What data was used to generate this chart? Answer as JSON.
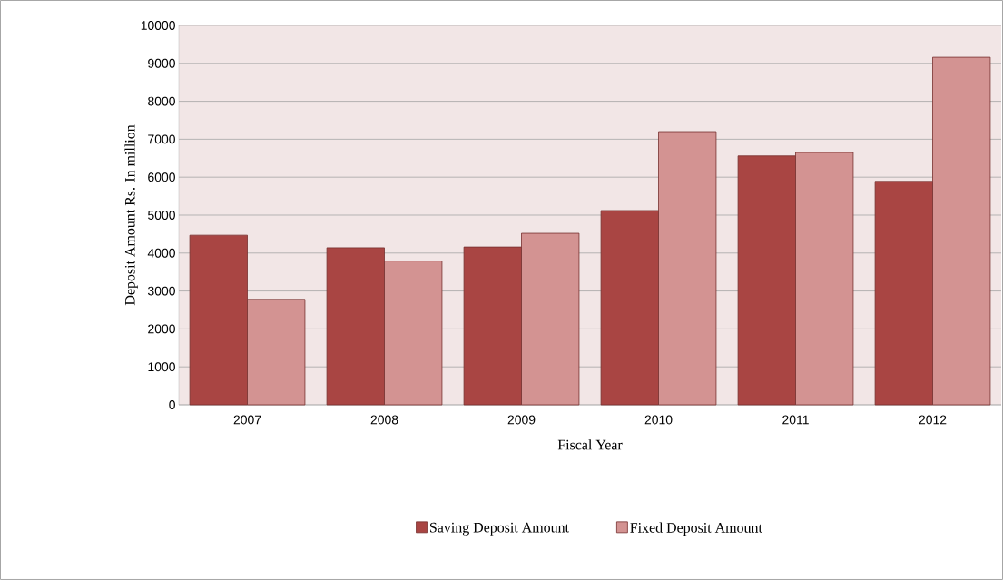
{
  "chart_data": {
    "type": "bar",
    "xlabel": "Fiscal Year",
    "ylabel": "Deposit Amount Rs. In million",
    "categories": [
      "2007",
      "2008",
      "2009",
      "2010",
      "2011",
      "2012"
    ],
    "series": [
      {
        "name": "Saving Deposit Amount",
        "color": "#a94543",
        "values": [
          4470,
          4140,
          4160,
          5120,
          6560,
          5890
        ]
      },
      {
        "name": "Fixed Deposit Amount",
        "color": "#d39392",
        "values": [
          2780,
          3790,
          4520,
          7200,
          6650,
          9160
        ]
      }
    ],
    "ylim": [
      0,
      10000
    ],
    "yticks": [
      0,
      1000,
      2000,
      3000,
      4000,
      5000,
      6000,
      7000,
      8000,
      9000,
      10000
    ],
    "grid": "y",
    "legend": "bottom"
  }
}
